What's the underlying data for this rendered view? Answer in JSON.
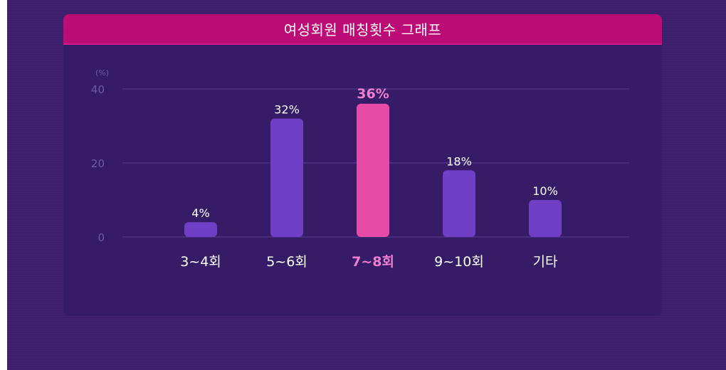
{
  "chart_data": {
    "type": "bar",
    "title": "여성회원 매칭횟수 그래프",
    "unit_label": "(%)",
    "categories": [
      "3~4회",
      "5~6회",
      "7~8회",
      "9~10회",
      "기타"
    ],
    "values": [
      4,
      32,
      36,
      18,
      10
    ],
    "value_labels": [
      "4%",
      "32%",
      "36%",
      "18%",
      "10%"
    ],
    "highlight_index": 2,
    "ylim": [
      0,
      40
    ],
    "yticks": [
      0,
      20,
      40
    ],
    "grid": true,
    "colors": {
      "bar": "#6f3fc6",
      "bar_highlight": "#e84aa8",
      "highlight_text": "#f07ed0",
      "header": "#bc0d76",
      "panel": "#361c66",
      "background": "#3d1f6e"
    }
  }
}
